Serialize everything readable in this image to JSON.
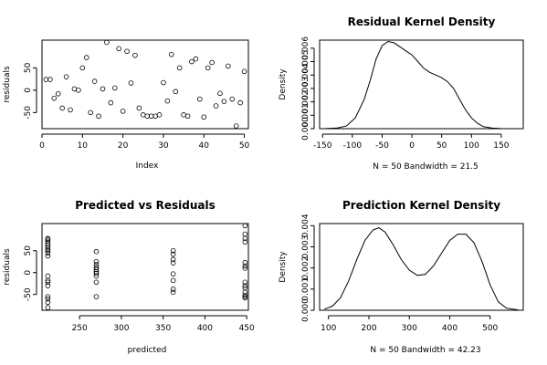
{
  "chart_data": [
    {
      "type": "scatter",
      "title": "",
      "xlabel": "Index",
      "ylabel": "residuals",
      "xlim": [
        0,
        51
      ],
      "ylim": [
        -86,
        112
      ],
      "xticks": [
        0,
        10,
        20,
        30,
        40,
        50
      ],
      "yticks": [
        -50,
        0,
        50
      ],
      "x": [
        1,
        2,
        3,
        4,
        5,
        6,
        7,
        8,
        9,
        10,
        11,
        12,
        13,
        14,
        15,
        16,
        17,
        18,
        19,
        20,
        21,
        22,
        23,
        24,
        25,
        26,
        27,
        28,
        29,
        30,
        31,
        32,
        33,
        34,
        35,
        36,
        37,
        38,
        39,
        40,
        41,
        42,
        43,
        44,
        45,
        46,
        47,
        48,
        49,
        50
      ],
      "y": [
        24,
        24,
        -18,
        -8,
        -40,
        30,
        -44,
        3,
        0,
        50,
        73,
        -50,
        20,
        -58,
        3,
        107,
        -28,
        5,
        93,
        -47,
        87,
        16,
        78,
        -40,
        -55,
        -58,
        -58,
        -58,
        -55,
        17,
        -24,
        80,
        -3,
        50,
        -55,
        -58,
        64,
        70,
        -20,
        -60,
        50,
        62,
        -35,
        -7,
        -25,
        54,
        -20,
        -80,
        -28,
        42
      ]
    },
    {
      "type": "line",
      "title": "Residual Kernel Density",
      "xlabel": "N = 50   Bandwidth = 21.5",
      "ylabel": "Density",
      "xlim": [
        -155,
        187
      ],
      "ylim": [
        0,
        0.0066
      ],
      "xticks": [
        -150,
        -100,
        -50,
        0,
        50,
        100,
        150
      ],
      "yticks": [
        0.0,
        0.001,
        0.002,
        0.003,
        0.004,
        0.005,
        0.006
      ],
      "x": [
        -145,
        -125,
        -110,
        -95,
        -80,
        -70,
        -60,
        -50,
        -40,
        -30,
        -20,
        -10,
        0,
        10,
        20,
        30,
        40,
        50,
        60,
        70,
        80,
        90,
        100,
        110,
        120,
        135,
        150,
        165,
        180
      ],
      "y": [
        5e-06,
        5e-05,
        0.0002,
        0.0008,
        0.0022,
        0.0036,
        0.0052,
        0.0062,
        0.0065,
        0.0064,
        0.0061,
        0.0058,
        0.0055,
        0.005,
        0.0045,
        0.0042,
        0.004,
        0.0038,
        0.0035,
        0.003,
        0.0022,
        0.0014,
        0.0008,
        0.0004,
        0.00015,
        4e-05,
        1e-05,
        2e-06,
        5e-07
      ]
    },
    {
      "type": "scatter",
      "title": "Predicted vs Residuals",
      "xlabel": "predicted",
      "ylabel": "residuals",
      "xlim": [
        205,
        452
      ],
      "ylim": [
        -86,
        112
      ],
      "xticks": [
        250,
        300,
        350,
        400,
        450
      ],
      "yticks": [
        -50,
        0,
        50
      ],
      "x": [
        212,
        212,
        212,
        212,
        212,
        212,
        212,
        212,
        212,
        212,
        212,
        212,
        212,
        212,
        212,
        212,
        212,
        212,
        270,
        270,
        270,
        270,
        270,
        270,
        270,
        270,
        270,
        270,
        362,
        362,
        362,
        362,
        362,
        362,
        362,
        362,
        448,
        448,
        448,
        448,
        448,
        448,
        448,
        448,
        448,
        448,
        448,
        448,
        448,
        448
      ],
      "y": [
        -80,
        -68,
        -60,
        -55,
        -30,
        -22,
        -18,
        -8,
        38,
        45,
        50,
        53,
        58,
        63,
        67,
        72,
        76,
        78,
        -55,
        -22,
        -8,
        -2,
        2,
        7,
        12,
        18,
        25,
        48,
        -45,
        -38,
        -18,
        -3,
        22,
        30,
        42,
        50,
        -58,
        -55,
        -52,
        -45,
        -35,
        -30,
        -22,
        10,
        15,
        23,
        70,
        78,
        88,
        107
      ]
    },
    {
      "type": "line",
      "title": "Prediction Kernel Density",
      "xlabel": "N = 50   Bandwidth = 42.23",
      "ylabel": "Density",
      "xlim": [
        78,
        582
      ],
      "ylim": [
        0,
        0.0041
      ],
      "xticks": [
        100,
        200,
        300,
        400,
        500
      ],
      "yticks": [
        0.0,
        0.001,
        0.002,
        0.003,
        0.004
      ],
      "x": [
        90,
        110,
        130,
        150,
        170,
        190,
        210,
        225,
        240,
        260,
        280,
        300,
        320,
        340,
        360,
        380,
        400,
        420,
        440,
        460,
        480,
        500,
        520,
        540,
        570
      ],
      "y": [
        5e-05,
        0.0002,
        0.0006,
        0.0014,
        0.0024,
        0.0033,
        0.0038,
        0.0039,
        0.0037,
        0.0031,
        0.0024,
        0.0019,
        0.00165,
        0.0017,
        0.0021,
        0.0027,
        0.0033,
        0.0036,
        0.0036,
        0.0032,
        0.0023,
        0.0012,
        0.0004,
        0.0001,
        1e-05
      ]
    }
  ]
}
